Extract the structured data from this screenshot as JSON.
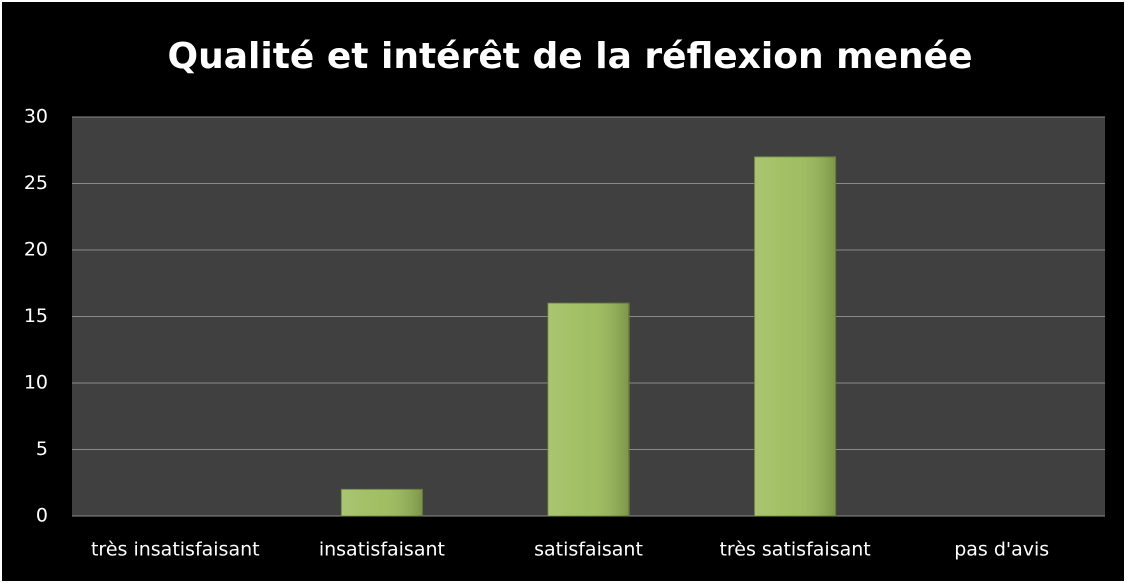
{
  "chart_data": {
    "type": "bar",
    "title": "Qualité et intérêt de la réflexion menée",
    "categories": [
      "très insatisfaisant",
      "insatisfaisant",
      "satisfaisant",
      "très satisfaisant",
      "pas d'avis"
    ],
    "values": [
      0,
      2,
      16,
      27,
      0
    ],
    "color": "#9bbb59",
    "ylim": [
      0,
      30
    ],
    "yticks": [
      0,
      5,
      10,
      15,
      20,
      25,
      30
    ],
    "grid": true
  }
}
